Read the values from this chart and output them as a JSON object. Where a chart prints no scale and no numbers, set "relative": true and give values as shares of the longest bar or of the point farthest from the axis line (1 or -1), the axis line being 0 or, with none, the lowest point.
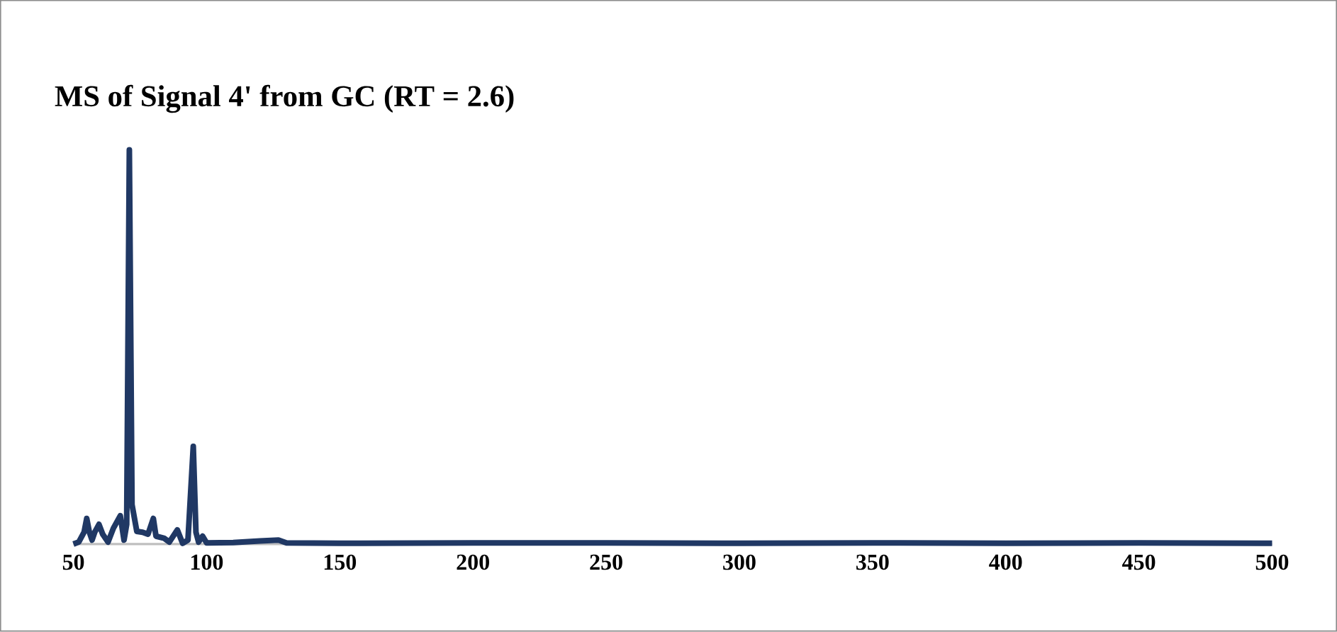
{
  "chart_data": {
    "type": "line",
    "title": "MS of Signal 4' from GC (RT = 2.6)",
    "relative": true,
    "x": [
      50,
      52,
      54,
      55,
      56,
      57,
      58,
      59.6,
      61,
      63,
      65,
      67.6,
      69,
      70,
      71,
      72,
      73.8,
      76,
      78,
      80,
      81,
      84,
      86,
      89,
      91,
      93,
      95,
      96,
      97,
      98.5,
      100,
      110,
      120,
      127,
      130,
      150,
      200,
      250,
      300,
      350,
      400,
      450,
      500
    ],
    "series": [
      {
        "color": "#203864",
        "values": [
          0,
          0.005,
          0.03,
          0.065,
          0.03,
          0.01,
          0.03,
          0.05,
          0.025,
          0.005,
          0.04,
          0.072,
          0.01,
          0.05,
          1.0,
          0.1,
          0.032,
          0.03,
          0.025,
          0.065,
          0.02,
          0.015,
          0.005,
          0.036,
          0.002,
          0.01,
          0.248,
          0.03,
          0.005,
          0.02,
          0.003,
          0.004,
          0.008,
          0.01,
          0.003,
          0.002,
          0.003,
          0.003,
          0.002,
          0.003,
          0.002,
          0.003,
          0.002
        ]
      }
    ],
    "xlim": [
      50,
      500
    ],
    "xticks": [
      50,
      100,
      150,
      200,
      250,
      300,
      350,
      400,
      450,
      500
    ],
    "marker": "none",
    "line_style": "solid"
  }
}
